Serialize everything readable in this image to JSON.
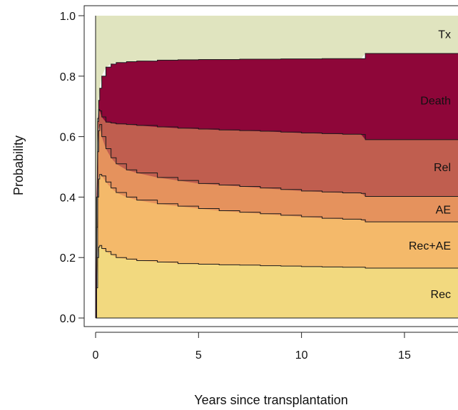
{
  "chart_data": {
    "type": "area",
    "title": "",
    "xlabel": "Years since transplantation",
    "ylabel": "Probability",
    "xlim": [
      0,
      18
    ],
    "ylim": [
      0,
      1
    ],
    "x_ticks": [
      0,
      5,
      10,
      15
    ],
    "x_tick_labels": [
      "0",
      "5",
      "10",
      "15"
    ],
    "y_ticks": [
      0.0,
      0.2,
      0.4,
      0.6,
      0.8,
      1.0
    ],
    "y_tick_labels": [
      "0.0",
      "0.2",
      "0.4",
      "0.6",
      "0.8",
      "1.0"
    ],
    "grid": false,
    "x": [
      0,
      0.05,
      0.1,
      0.15,
      0.2,
      0.3,
      0.5,
      0.75,
      1,
      1.5,
      2,
      3,
      4,
      5,
      6,
      7,
      8,
      9,
      10,
      11,
      12,
      12.9,
      13.1,
      14,
      15,
      16,
      17,
      18
    ],
    "boundaries": [
      {
        "name": "Rec",
        "values": [
          0,
          0.1,
          0.2,
          0.235,
          0.24,
          0.23,
          0.22,
          0.21,
          0.2,
          0.195,
          0.19,
          0.185,
          0.18,
          0.178,
          0.176,
          0.175,
          0.173,
          0.172,
          0.17,
          0.169,
          0.168,
          0.168,
          0.165,
          0.165,
          0.165,
          0.165,
          0.165,
          0.165
        ]
      },
      {
        "name": "Rec+AE",
        "values": [
          0,
          0.2,
          0.4,
          0.46,
          0.475,
          0.47,
          0.45,
          0.43,
          0.415,
          0.4,
          0.39,
          0.378,
          0.37,
          0.362,
          0.355,
          0.35,
          0.345,
          0.34,
          0.335,
          0.33,
          0.327,
          0.325,
          0.318,
          0.318,
          0.318,
          0.318,
          0.318,
          0.318
        ]
      },
      {
        "name": "AE",
        "values": [
          0,
          0.3,
          0.55,
          0.62,
          0.64,
          0.6,
          0.56,
          0.53,
          0.51,
          0.49,
          0.48,
          0.465,
          0.455,
          0.445,
          0.44,
          0.435,
          0.43,
          0.425,
          0.42,
          0.417,
          0.414,
          0.412,
          0.402,
          0.402,
          0.402,
          0.402,
          0.402,
          0.402
        ]
      },
      {
        "name": "Rel",
        "values": [
          0,
          0.4,
          0.65,
          0.69,
          0.685,
          0.665,
          0.648,
          0.645,
          0.642,
          0.64,
          0.637,
          0.632,
          0.628,
          0.625,
          0.622,
          0.62,
          0.618,
          0.615,
          0.612,
          0.61,
          0.608,
          0.607,
          0.59,
          0.59,
          0.59,
          0.59,
          0.59,
          0.59
        ]
      },
      {
        "name": "Death",
        "values": [
          0,
          0.4,
          0.66,
          0.72,
          0.76,
          0.8,
          0.83,
          0.84,
          0.845,
          0.848,
          0.85,
          0.853,
          0.854,
          0.855,
          0.855,
          0.856,
          0.856,
          0.857,
          0.857,
          0.858,
          0.858,
          0.858,
          0.875,
          0.875,
          0.875,
          0.875,
          0.875,
          0.875
        ]
      },
      {
        "name": "Tx",
        "values": [
          1,
          1,
          1,
          1,
          1,
          1,
          1,
          1,
          1,
          1,
          1,
          1,
          1,
          1,
          1,
          1,
          1,
          1,
          1,
          1,
          1,
          1,
          1,
          1,
          1,
          1,
          1,
          1
        ]
      }
    ],
    "series": [
      {
        "name": "Rec",
        "color": "#f2d97f",
        "label_y": 0.08
      },
      {
        "name": "Rec+AE",
        "color": "#f4b96a",
        "label_y": 0.24
      },
      {
        "name": "AE",
        "color": "#e5925d",
        "label_y": 0.36
      },
      {
        "name": "Rel",
        "color": "#c05e4f",
        "label_y": 0.5
      },
      {
        "name": "Death",
        "color": "#8e0639",
        "label_y": 0.72
      },
      {
        "name": "Tx",
        "color": "#e0e4bf",
        "label_y": 0.94
      }
    ]
  }
}
